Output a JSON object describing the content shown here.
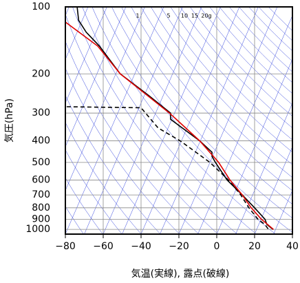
{
  "chart_data": {
    "type": "skewt",
    "xlabel": "気温(実線), 露点(破線)",
    "ylabel": "気圧(hPa)",
    "xlim": [
      -80,
      40
    ],
    "xticks": [
      {
        "value": -80,
        "label": "−80"
      },
      {
        "value": -60,
        "label": "−60"
      },
      {
        "value": -40,
        "label": "−40"
      },
      {
        "value": -20,
        "label": "−20"
      },
      0,
      20,
      40
    ],
    "ylim": [
      1050,
      100
    ],
    "yticks": [
      100,
      200,
      300,
      400,
      500,
      600,
      700,
      800,
      900,
      1000
    ],
    "log_y": true,
    "grid": true,
    "mixing_ratio_labels": [
      "1",
      "5",
      "10",
      "15",
      "20g"
    ],
    "series": [
      {
        "color": "#000000",
        "dash": false,
        "p": [
          100,
          115,
          130,
          150,
          200,
          250,
          300,
          320,
          400,
          450,
          470,
          500,
          600,
          700,
          800,
          900,
          950,
          1000
        ],
        "values": [
          -73.8,
          -73,
          -69,
          -62,
          -51,
          -36,
          -24.4,
          -24.4,
          -9,
          -2.5,
          -2.5,
          -0.7,
          5.5,
          13.5,
          20,
          25.5,
          26.5,
          29.8
        ]
      },
      {
        "color": "#000000",
        "dash": true,
        "p": [
          281,
          284,
          350,
          400,
          450,
          500,
          600,
          700,
          800,
          900,
          950,
          1000
        ],
        "values": [
          -79.3,
          -40,
          -31,
          -19.3,
          -11,
          -3.6,
          6.2,
          12.7,
          17,
          21.8,
          25.5,
          27.3
        ]
      },
      {
        "color": "#e00000",
        "dash": false,
        "p": [
          117,
          150,
          200,
          300,
          400,
          500,
          600,
          700,
          800,
          900,
          1000
        ],
        "values": [
          -80,
          -62.9,
          -51,
          -25,
          -9,
          1,
          7,
          13.5,
          18.2,
          23.6,
          30
        ]
      }
    ]
  }
}
